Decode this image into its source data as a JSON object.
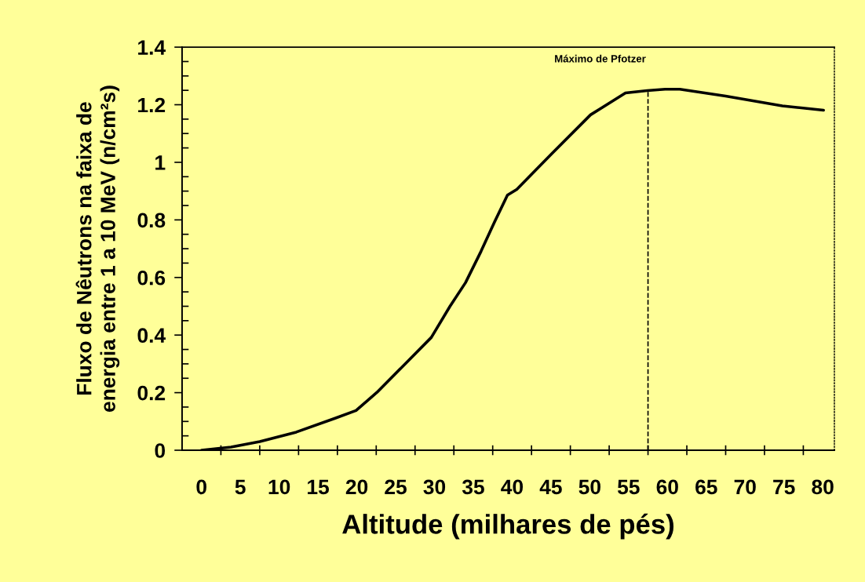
{
  "chart_data": {
    "type": "line",
    "xlabel": "Altitude (milhares de pés)",
    "ylabel": "Fluxo de Nêutrons na faixa de\nenergia entre 1 a 10 MeV (n/cm²s)",
    "x": [
      0,
      3.8,
      7.5,
      12.2,
      17.2,
      19.9,
      22.6,
      26.6,
      29.6,
      32.0,
      34.0,
      36.0,
      37.7,
      39.4,
      40.6,
      45.1,
      50.1,
      54.6,
      57.4,
      59.7,
      61.6,
      67.5,
      74.8,
      80.1
    ],
    "series": [
      {
        "color": "#000000",
        "values": [
          0.0,
          0.011,
          0.03,
          0.063,
          0.111,
          0.138,
          0.201,
          0.31,
          0.392,
          0.5,
          0.582,
          0.691,
          0.791,
          0.886,
          0.906,
          1.03,
          1.165,
          1.241,
          1.249,
          1.254,
          1.254,
          1.23,
          1.196,
          1.181
        ]
      }
    ],
    "xlim": [
      -2.5,
      81.5
    ],
    "xticks": [
      0,
      {
        "value": 2.5,
        "label": null
      },
      5,
      {
        "value": 7.5,
        "label": null
      },
      10,
      {
        "value": 12.5,
        "label": null
      },
      15,
      {
        "value": 17.5,
        "label": null
      },
      20,
      {
        "value": 22.5,
        "label": null
      },
      25,
      {
        "value": 27.5,
        "label": null
      },
      30,
      {
        "value": 32.5,
        "label": null
      },
      35,
      {
        "value": 37.5,
        "label": null
      },
      40,
      {
        "value": 42.5,
        "label": null
      },
      45,
      {
        "value": 47.5,
        "label": null
      },
      50,
      {
        "value": 52.5,
        "label": null
      },
      55,
      {
        "value": 57.5,
        "label": null
      },
      60,
      {
        "value": 62.5,
        "label": null
      },
      65,
      {
        "value": 67.5,
        "label": null
      },
      70,
      {
        "value": 72.5,
        "label": null
      },
      75,
      {
        "value": 77.5,
        "label": null
      },
      80
    ],
    "ylim": [
      0,
      1.4
    ],
    "yticks": [
      0,
      {
        "value": 0.05,
        "label": null
      },
      {
        "value": 0.1,
        "label": null
      },
      {
        "value": 0.15,
        "label": null
      },
      0.2,
      {
        "value": 0.25,
        "label": null
      },
      {
        "value": 0.3,
        "label": null
      },
      {
        "value": 0.35,
        "label": null
      },
      0.4,
      {
        "value": 0.45,
        "label": null
      },
      {
        "value": 0.5,
        "label": null
      },
      {
        "value": 0.55,
        "label": null
      },
      0.6,
      {
        "value": 0.65,
        "label": null
      },
      {
        "value": 0.7,
        "label": null
      },
      {
        "value": 0.75,
        "label": null
      },
      0.8,
      {
        "value": 0.85,
        "label": null
      },
      {
        "value": 0.9,
        "label": null
      },
      {
        "value": 0.95,
        "label": null
      },
      1,
      {
        "value": 1.05,
        "label": null
      },
      {
        "value": 1.1,
        "label": null
      },
      {
        "value": 1.15,
        "label": null
      },
      1.2,
      {
        "value": 1.25,
        "label": null
      },
      {
        "value": 1.3,
        "label": null
      },
      {
        "value": 1.35,
        "label": null
      },
      1.4
    ],
    "ref_lines": [
      {
        "axis": "x",
        "value": 57.5,
        "label": "Máximo de Pfotzer",
        "color": "#000000",
        "line_style": "dashed"
      }
    ],
    "marker": "none",
    "line_style": "solid",
    "grid": false,
    "legend": false
  }
}
